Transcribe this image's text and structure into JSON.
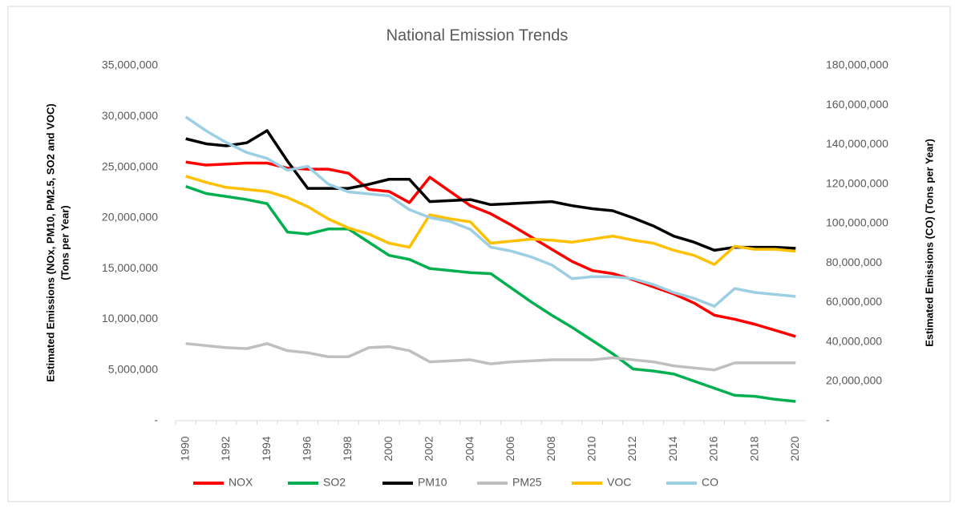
{
  "chart_data": {
    "type": "line",
    "title": "National Emission Trends",
    "ylabel": [
      "Estimated Emissions (NOx, PM10, PM2.5, SO2 and VOC)",
      "(Tons per Year)"
    ],
    "y2label": "Estimated Emissions (CO) (Tons per Year)",
    "categories": [
      "1990",
      null,
      "1992",
      null,
      "1994",
      null,
      "1996",
      null,
      "1998",
      null,
      "2000",
      null,
      "2002",
      null,
      "2004",
      null,
      "2006",
      null,
      "2008",
      null,
      "2010",
      null,
      "2012",
      null,
      "2014",
      null,
      "2016",
      null,
      "2018",
      null,
      "2020"
    ],
    "ylim": [
      0,
      35000000
    ],
    "yticks": [
      {
        "value": 0,
        "label": "-"
      },
      {
        "value": 5000000,
        "label": "5,000,000"
      },
      {
        "value": 10000000,
        "label": "10,000,000"
      },
      {
        "value": 15000000,
        "label": "15,000,000"
      },
      {
        "value": 20000000,
        "label": "20,000,000"
      },
      {
        "value": 25000000,
        "label": "25,000,000"
      },
      {
        "value": 30000000,
        "label": "30,000,000"
      },
      {
        "value": 35000000,
        "label": "35,000,000"
      }
    ],
    "y2lim": [
      0,
      180000000
    ],
    "y2ticks": [
      {
        "value": 0,
        "label": "-"
      },
      {
        "value": 20000000,
        "label": "20,000,000"
      },
      {
        "value": 40000000,
        "label": "40,000,000"
      },
      {
        "value": 60000000,
        "label": "60,000,000"
      },
      {
        "value": 80000000,
        "label": "80,000,000"
      },
      {
        "value": 100000000,
        "label": "100,000,000"
      },
      {
        "value": 120000000,
        "label": "120,000,000"
      },
      {
        "value": 140000000,
        "label": "140,000,000"
      },
      {
        "value": 160000000,
        "label": "160,000,000"
      },
      {
        "value": 180000000,
        "label": "180,000,000"
      }
    ],
    "grid": false,
    "legend": "bottom",
    "series": [
      {
        "name": "NOX",
        "color": "#ff0000",
        "values": [
          25500000,
          25200000,
          25300000,
          25400000,
          25400000,
          24900000,
          24800000,
          24800000,
          24400000,
          22800000,
          22600000,
          21500000,
          24000000,
          22600000,
          21200000,
          20400000,
          19300000,
          18100000,
          16900000,
          15700000,
          14800000,
          14500000,
          13900000,
          13200000,
          12500000,
          11600000,
          10400000,
          10000000,
          9500000,
          8900000,
          8300000
        ]
      },
      {
        "name": "SO2",
        "color": "#00b050",
        "values": [
          23100000,
          22400000,
          22100000,
          21800000,
          21400000,
          18600000,
          18400000,
          18900000,
          18900000,
          17600000,
          16300000,
          15900000,
          15000000,
          14800000,
          14600000,
          14500000,
          13100000,
          11700000,
          10400000,
          9200000,
          7900000,
          6600000,
          5100000,
          4900000,
          4600000,
          3900000,
          3200000,
          2500000,
          2400000,
          2100000,
          1900000
        ]
      },
      {
        "name": "PM10",
        "color": "#000000",
        "values": [
          27800000,
          27300000,
          27100000,
          27400000,
          28600000,
          25600000,
          22900000,
          22900000,
          22900000,
          23300000,
          23800000,
          23800000,
          21600000,
          21700000,
          21800000,
          21300000,
          21400000,
          21500000,
          21600000,
          21200000,
          20900000,
          20700000,
          20000000,
          19200000,
          18200000,
          17600000,
          16800000,
          17100000,
          17100000,
          17100000,
          17000000
        ]
      },
      {
        "name": "PM25",
        "color": "#bfbfbf",
        "values": [
          7600000,
          7400000,
          7200000,
          7100000,
          7600000,
          6900000,
          6700000,
          6300000,
          6300000,
          7200000,
          7300000,
          6900000,
          5800000,
          5900000,
          6000000,
          5600000,
          5800000,
          5900000,
          6000000,
          6000000,
          6000000,
          6200000,
          6000000,
          5800000,
          5400000,
          5200000,
          5000000,
          5700000,
          5700000,
          5700000,
          5700000
        ]
      },
      {
        "name": "VOC",
        "color": "#ffc000",
        "values": [
          24100000,
          23500000,
          23000000,
          22800000,
          22600000,
          22000000,
          21100000,
          19900000,
          19000000,
          18400000,
          17500000,
          17100000,
          20300000,
          19900000,
          19600000,
          17500000,
          17700000,
          17900000,
          17800000,
          17600000,
          17900000,
          18200000,
          17800000,
          17500000,
          16800000,
          16300000,
          15400000,
          17200000,
          16900000,
          16900000,
          16700000
        ]
      },
      {
        "name": "CO",
        "color": "#9ccee4",
        "axis": "y2",
        "values": [
          154000000,
          147000000,
          141000000,
          136000000,
          133000000,
          127000000,
          129000000,
          120000000,
          116000000,
          115000000,
          114000000,
          107000000,
          103000000,
          101000000,
          97000000,
          88000000,
          86000000,
          83000000,
          79000000,
          72000000,
          73000000,
          73000000,
          72000000,
          69000000,
          65000000,
          62000000,
          58000000,
          67000000,
          65000000,
          64000000,
          63000000
        ]
      }
    ]
  }
}
